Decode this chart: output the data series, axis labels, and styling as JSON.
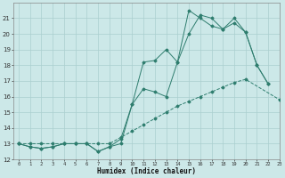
{
  "xlabel": "Humidex (Indice chaleur)",
  "x_values": [
    0,
    1,
    2,
    3,
    4,
    5,
    6,
    7,
    8,
    9,
    10,
    11,
    12,
    13,
    14,
    15,
    16,
    17,
    18,
    19,
    20,
    21,
    22,
    23
  ],
  "line1": [
    13.0,
    12.8,
    12.7,
    12.8,
    13.0,
    13.0,
    13.0,
    12.5,
    12.8,
    13.0,
    15.5,
    16.5,
    16.3,
    16.0,
    18.2,
    21.5,
    21.0,
    20.5,
    20.3,
    21.0,
    20.1,
    18.0,
    16.8,
    null
  ],
  "line2": [
    13.0,
    12.8,
    12.7,
    12.8,
    13.0,
    13.0,
    13.0,
    12.5,
    12.8,
    13.3,
    15.5,
    18.2,
    18.3,
    19.0,
    18.2,
    20.0,
    21.2,
    21.0,
    20.3,
    20.7,
    20.1,
    18.0,
    16.8,
    null
  ],
  "line3": [
    13.0,
    13.0,
    13.0,
    13.0,
    13.0,
    13.0,
    13.0,
    13.0,
    13.0,
    13.4,
    13.8,
    14.2,
    14.6,
    15.0,
    15.4,
    15.7,
    16.0,
    16.3,
    16.6,
    16.9,
    17.1,
    null,
    null,
    15.8
  ],
  "ylim": [
    12,
    22
  ],
  "xlim": [
    -0.5,
    23
  ],
  "yticks": [
    12,
    13,
    14,
    15,
    16,
    17,
    18,
    19,
    20,
    21
  ],
  "xticks": [
    0,
    1,
    2,
    3,
    4,
    5,
    6,
    7,
    8,
    9,
    10,
    11,
    12,
    13,
    14,
    15,
    16,
    17,
    18,
    19,
    20,
    21,
    22,
    23
  ],
  "line_color": "#2e7d6e",
  "bg_color": "#cce8e8",
  "grid_color": "#aacfcf"
}
